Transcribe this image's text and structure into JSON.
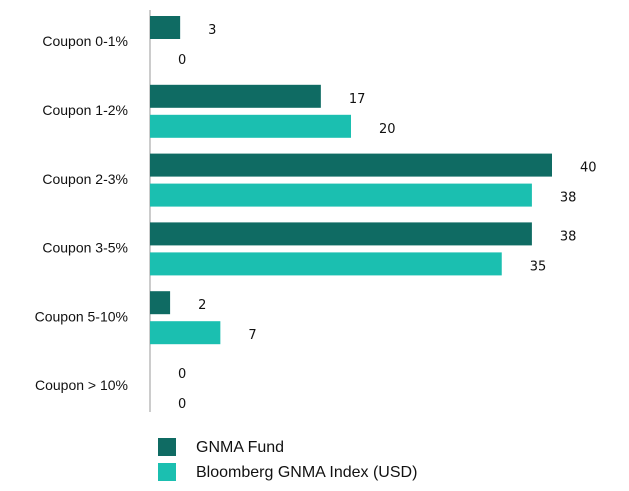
{
  "chart_data": {
    "type": "bar",
    "orientation": "horizontal",
    "categories": [
      "Coupon 0-1%",
      "Coupon 1-2%",
      "Coupon 2-3%",
      "Coupon 3-5%",
      "Coupon 5-10%",
      "Coupon > 10%"
    ],
    "series": [
      {
        "name": "GNMA Fund",
        "color": "#0f6b63",
        "values": [
          3,
          17,
          40,
          38,
          2,
          0
        ]
      },
      {
        "name": "Bloomberg GNMA Index (USD)",
        "color": "#1bbfb0",
        "values": [
          0,
          20,
          38,
          35,
          7,
          0
        ]
      }
    ]
  }
}
